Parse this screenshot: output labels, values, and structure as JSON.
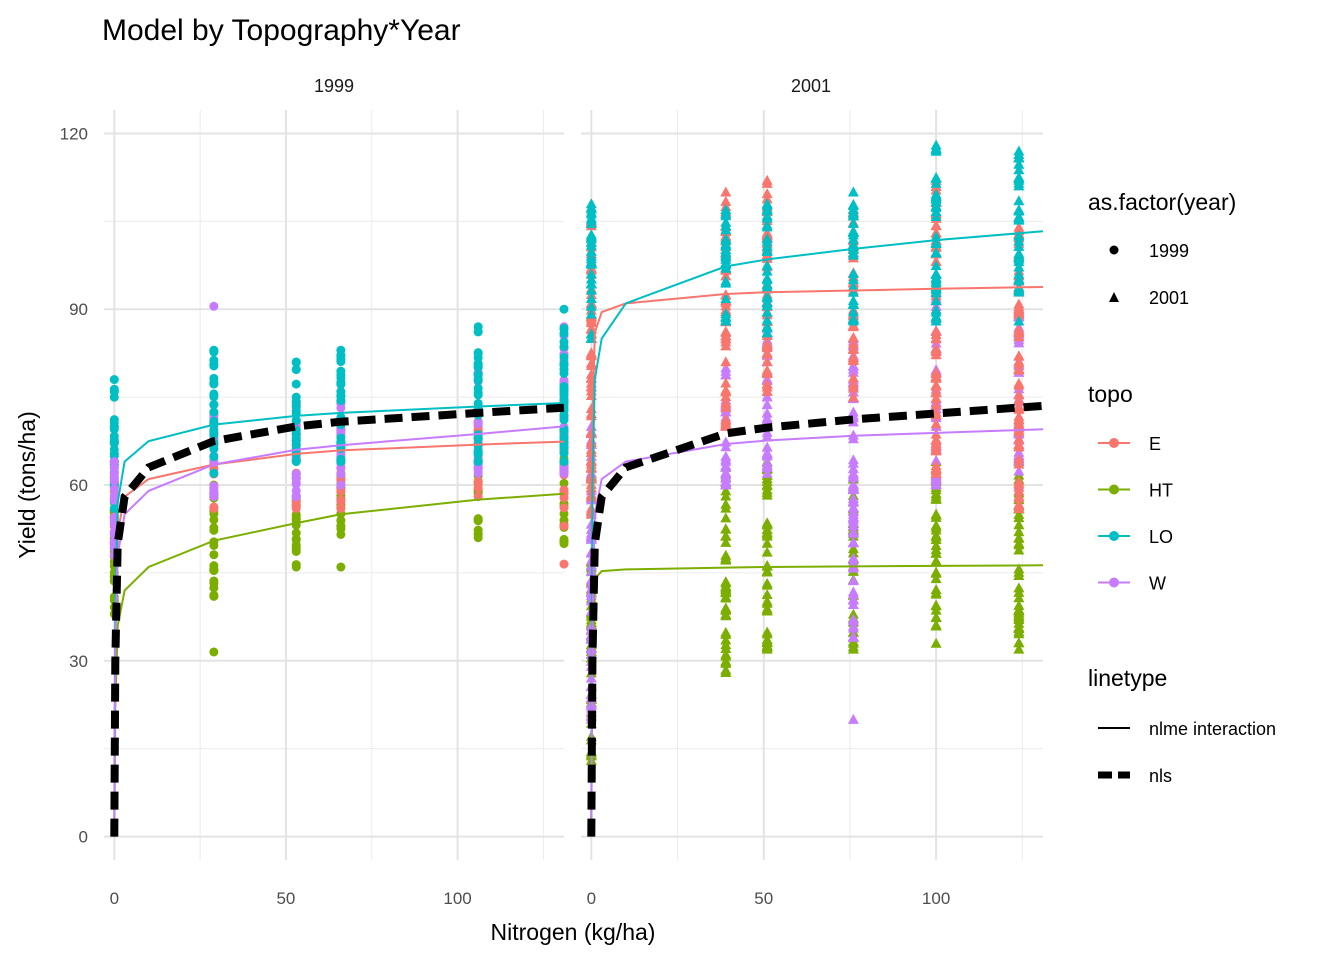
{
  "chart_data": {
    "type": "scatter",
    "title": "Model by Topography*Year",
    "xlabel": "Nitrogen (kg/ha)",
    "ylabel": "Yield (tons/ha)",
    "xlim": [
      -3,
      131
    ],
    "ylim": [
      -4,
      124
    ],
    "x_ticks": [
      0,
      50,
      100
    ],
    "y_ticks": [
      0,
      30,
      60,
      90,
      120
    ],
    "grid": true,
    "facets": [
      "1999",
      "2001"
    ],
    "legend_position": "right",
    "legends": {
      "shape": {
        "title": "as.factor(year)",
        "entries": [
          {
            "label": "1999",
            "shape": "circle"
          },
          {
            "label": "2001",
            "shape": "triangle"
          }
        ]
      },
      "topo": {
        "title": "topo",
        "entries": [
          {
            "label": "E",
            "color": "#F8766D"
          },
          {
            "label": "HT",
            "color": "#7CAE00"
          },
          {
            "label": "LO",
            "color": "#00BFC4"
          },
          {
            "label": "W",
            "color": "#C77CFF"
          }
        ]
      },
      "linetype": {
        "title": "linetype",
        "entries": [
          {
            "label": "nlme interaction",
            "style": "solid"
          },
          {
            "label": "nls",
            "style": "dashed"
          }
        ]
      }
    },
    "points": [
      {
        "facet": "1999",
        "n": 0,
        "topo": "E",
        "ymin": 50,
        "ymax": 64
      },
      {
        "facet": "1999",
        "n": 0,
        "topo": "HT",
        "ymin": 38,
        "ymax": 57
      },
      {
        "facet": "1999",
        "n": 0,
        "topo": "LO",
        "ymin": 56,
        "ymax": 78
      },
      {
        "facet": "1999",
        "n": 0,
        "topo": "W",
        "ymin": 48,
        "ymax": 64
      },
      {
        "facet": "1999",
        "n": 29,
        "topo": "HT",
        "ymin": 41,
        "ymax": 60
      },
      {
        "facet": "1999",
        "n": 29,
        "topo": "E",
        "ymin": 56,
        "ymax": 68
      },
      {
        "facet": "1999",
        "n": 29,
        "topo": "W",
        "ymin": 58,
        "ymax": 72
      },
      {
        "facet": "1999",
        "n": 29,
        "topo": "LO",
        "ymin": 62,
        "ymax": 83
      },
      {
        "facet": "1999",
        "n": 53,
        "topo": "HT",
        "ymin": 46,
        "ymax": 62
      },
      {
        "facet": "1999",
        "n": 53,
        "topo": "E",
        "ymin": 56,
        "ymax": 70
      },
      {
        "facet": "1999",
        "n": 53,
        "topo": "W",
        "ymin": 58,
        "ymax": 74
      },
      {
        "facet": "1999",
        "n": 53,
        "topo": "LO",
        "ymin": 64,
        "ymax": 81
      },
      {
        "facet": "1999",
        "n": 66,
        "topo": "HT",
        "ymin": 46,
        "ymax": 62
      },
      {
        "facet": "1999",
        "n": 66,
        "topo": "E",
        "ymin": 56,
        "ymax": 70
      },
      {
        "facet": "1999",
        "n": 66,
        "topo": "W",
        "ymin": 60,
        "ymax": 76
      },
      {
        "facet": "1999",
        "n": 66,
        "topo": "LO",
        "ymin": 64,
        "ymax": 83
      },
      {
        "facet": "1999",
        "n": 106,
        "topo": "HT",
        "ymin": 51,
        "ymax": 64
      },
      {
        "facet": "1999",
        "n": 106,
        "topo": "E",
        "ymin": 58,
        "ymax": 72
      },
      {
        "facet": "1999",
        "n": 106,
        "topo": "W",
        "ymin": 62,
        "ymax": 80
      },
      {
        "facet": "1999",
        "n": 106,
        "topo": "LO",
        "ymin": 64,
        "ymax": 87
      },
      {
        "facet": "1999",
        "n": 131,
        "topo": "HT",
        "ymin": 50,
        "ymax": 66
      },
      {
        "facet": "1999",
        "n": 131,
        "topo": "E",
        "ymin": 53,
        "ymax": 72
      },
      {
        "facet": "1999",
        "n": 131,
        "topo": "W",
        "ymin": 62,
        "ymax": 87
      },
      {
        "facet": "1999",
        "n": 131,
        "topo": "LO",
        "ymin": 64,
        "ymax": 90
      },
      {
        "facet": "2001",
        "n": 0,
        "topo": "HT",
        "ymin": 13,
        "ymax": 47
      },
      {
        "facet": "2001",
        "n": 0,
        "topo": "W",
        "ymin": 20,
        "ymax": 70
      },
      {
        "facet": "2001",
        "n": 0,
        "topo": "E",
        "ymin": 55,
        "ymax": 105
      },
      {
        "facet": "2001",
        "n": 0,
        "topo": "LO",
        "ymin": 85,
        "ymax": 108
      },
      {
        "facet": "2001",
        "n": 39,
        "topo": "HT",
        "ymin": 28,
        "ymax": 63
      },
      {
        "facet": "2001",
        "n": 39,
        "topo": "W",
        "ymin": 60,
        "ymax": 80
      },
      {
        "facet": "2001",
        "n": 39,
        "topo": "E",
        "ymin": 70,
        "ymax": 110
      },
      {
        "facet": "2001",
        "n": 39,
        "topo": "LO",
        "ymin": 88,
        "ymax": 107
      },
      {
        "facet": "2001",
        "n": 51,
        "topo": "HT",
        "ymin": 32,
        "ymax": 64
      },
      {
        "facet": "2001",
        "n": 51,
        "topo": "W",
        "ymin": 62,
        "ymax": 88
      },
      {
        "facet": "2001",
        "n": 51,
        "topo": "E",
        "ymin": 76,
        "ymax": 112
      },
      {
        "facet": "2001",
        "n": 51,
        "topo": "LO",
        "ymin": 86,
        "ymax": 108
      },
      {
        "facet": "2001",
        "n": 76,
        "topo": "HT",
        "ymin": 32,
        "ymax": 61
      },
      {
        "facet": "2001",
        "n": 76,
        "topo": "W",
        "ymin": 34,
        "ymax": 85
      },
      {
        "facet": "2001",
        "n": 76,
        "topo": "E",
        "ymin": 75,
        "ymax": 107
      },
      {
        "facet": "2001",
        "n": 76,
        "topo": "LO",
        "ymin": 88,
        "ymax": 110
      },
      {
        "facet": "2001",
        "n": 100,
        "topo": "HT",
        "ymin": 33,
        "ymax": 64
      },
      {
        "facet": "2001",
        "n": 100,
        "topo": "W",
        "ymin": 60,
        "ymax": 93
      },
      {
        "facet": "2001",
        "n": 100,
        "topo": "E",
        "ymin": 62,
        "ymax": 112
      },
      {
        "facet": "2001",
        "n": 100,
        "topo": "LO",
        "ymin": 88,
        "ymax": 118
      },
      {
        "facet": "2001",
        "n": 124,
        "topo": "HT",
        "ymin": 32,
        "ymax": 64
      },
      {
        "facet": "2001",
        "n": 124,
        "topo": "W",
        "ymin": 60,
        "ymax": 90
      },
      {
        "facet": "2001",
        "n": 124,
        "topo": "E",
        "ymin": 56,
        "ymax": 104
      },
      {
        "facet": "2001",
        "n": 124,
        "topo": "LO",
        "ymin": 88,
        "ymax": 117
      }
    ],
    "outliers": [
      {
        "facet": "1999",
        "n": 29,
        "y": 90.5,
        "topo": "W"
      },
      {
        "facet": "1999",
        "n": 29,
        "y": 31.5,
        "topo": "HT"
      },
      {
        "facet": "1999",
        "n": 131,
        "y": 46.5,
        "topo": "E"
      },
      {
        "facet": "2001",
        "n": 39,
        "y": 28,
        "topo": "HT"
      },
      {
        "facet": "2001",
        "n": 76,
        "y": 20,
        "topo": "W"
      }
    ],
    "curves": [
      {
        "facet": "1999",
        "topo": "E",
        "style": "solid",
        "x": [
          0,
          0.3,
          1,
          3,
          10,
          29,
          53,
          66,
          106,
          131
        ],
        "y": [
          0,
          35,
          52,
          58,
          61,
          63.5,
          65.3,
          65.9,
          66.9,
          67.4
        ]
      },
      {
        "facet": "1999",
        "topo": "HT",
        "style": "solid",
        "x": [
          0,
          0.3,
          1,
          3,
          10,
          29,
          53,
          66,
          106,
          131
        ],
        "y": [
          0,
          22,
          36,
          42,
          46,
          50.5,
          53.5,
          55,
          57.5,
          58.5
        ]
      },
      {
        "facet": "1999",
        "topo": "LO",
        "style": "solid",
        "x": [
          0,
          0.3,
          1,
          3,
          10,
          29,
          53,
          66,
          106,
          131
        ],
        "y": [
          0,
          40,
          57,
          64,
          67.5,
          70.3,
          71.8,
          72.3,
          73.4,
          74
        ]
      },
      {
        "facet": "1999",
        "topo": "W",
        "style": "solid",
        "x": [
          0,
          0.3,
          1,
          3,
          10,
          29,
          53,
          66,
          106,
          131
        ],
        "y": [
          0,
          32,
          48,
          55,
          59,
          63.5,
          66,
          66.8,
          68.7,
          70
        ]
      },
      {
        "facet": "1999",
        "topo": "nls",
        "style": "dashed",
        "x": [
          0,
          0.3,
          1,
          3,
          10,
          29,
          53,
          66,
          106,
          131
        ],
        "y": [
          0,
          30,
          50,
          58,
          63,
          67.5,
          70,
          70.8,
          72.3,
          73.2
        ]
      },
      {
        "facet": "2001",
        "topo": "E",
        "style": "solid",
        "x": [
          0,
          0.3,
          1,
          3,
          10,
          39,
          51,
          76,
          100,
          131
        ],
        "y": [
          0,
          70,
          86,
          89.5,
          91,
          92.6,
          92.9,
          93.2,
          93.5,
          93.8
        ]
      },
      {
        "facet": "2001",
        "topo": "HT",
        "style": "solid",
        "x": [
          0,
          0.3,
          1,
          3,
          10,
          39,
          51,
          76,
          100,
          131
        ],
        "y": [
          0,
          35,
          44,
          45.3,
          45.6,
          45.9,
          46,
          46.1,
          46.2,
          46.3
        ]
      },
      {
        "facet": "2001",
        "topo": "LO",
        "style": "solid",
        "x": [
          0,
          0.3,
          1,
          3,
          10,
          39,
          51,
          76,
          100,
          131
        ],
        "y": [
          0,
          60,
          78,
          85,
          91,
          97.3,
          98.5,
          100.3,
          101.8,
          103.3
        ]
      },
      {
        "facet": "2001",
        "topo": "W",
        "style": "solid",
        "x": [
          0,
          0.3,
          1,
          3,
          10,
          39,
          51,
          76,
          100,
          131
        ],
        "y": [
          0,
          36,
          55,
          61,
          64,
          67,
          67.6,
          68.4,
          68.9,
          69.5
        ]
      },
      {
        "facet": "2001",
        "topo": "nls",
        "style": "dashed",
        "x": [
          0,
          0.3,
          1,
          3,
          10,
          39,
          51,
          76,
          100,
          131
        ],
        "y": [
          0,
          30,
          50,
          58,
          63,
          68.8,
          69.8,
          71.2,
          72.2,
          73.5
        ]
      }
    ]
  }
}
